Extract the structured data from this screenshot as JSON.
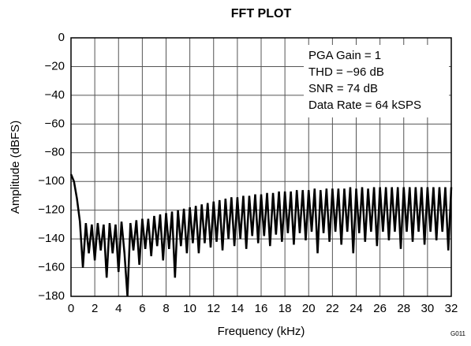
{
  "chart_data": {
    "type": "line",
    "title": "FFT PLOT",
    "x_label": "Frequency (kHz)",
    "y_label": "Amplitude (dBFS)",
    "figure_id": "G011",
    "annotations": [
      "PGA Gain = 1",
      "THD = −96 dB",
      "SNR = 74 dB",
      "Data Rate = 64 kSPS"
    ],
    "grid": true,
    "xlim": [
      0,
      32
    ],
    "xticks": [
      0,
      2,
      4,
      6,
      8,
      10,
      12,
      14,
      16,
      18,
      20,
      22,
      24,
      26,
      28,
      30,
      32
    ],
    "ylim": [
      -180,
      0
    ],
    "yticks": [
      {
        "value": -180,
        "label": "−180"
      },
      {
        "value": -160,
        "label": "−160"
      },
      {
        "value": -140,
        "label": "−140"
      },
      {
        "value": -120,
        "label": "−120"
      },
      {
        "value": -100,
        "label": "−100"
      },
      {
        "value": -80,
        "label": "−80"
      },
      {
        "value": -60,
        "label": "−60"
      },
      {
        "value": -40,
        "label": "−40"
      },
      {
        "value": -20,
        "label": "−20"
      },
      0
    ],
    "x": [
      0,
      0.25,
      0.5,
      0.75,
      1,
      1.25,
      1.5,
      1.75,
      2,
      2.25,
      2.5,
      2.75,
      3,
      3.25,
      3.5,
      3.75,
      4,
      4.25,
      4.5,
      4.75,
      5,
      5.25,
      5.5,
      5.75,
      6,
      6.25,
      6.5,
      6.75,
      7,
      7.25,
      7.5,
      7.75,
      8,
      8.25,
      8.5,
      8.75,
      9,
      9.25,
      9.5,
      9.75,
      10,
      10.25,
      10.5,
      10.75,
      11,
      11.25,
      11.5,
      11.75,
      12,
      12.25,
      12.5,
      12.75,
      13,
      13.25,
      13.5,
      13.75,
      14,
      14.25,
      14.5,
      14.75,
      15,
      15.25,
      15.5,
      15.75,
      16,
      16.25,
      16.5,
      16.75,
      17,
      17.25,
      17.5,
      17.75,
      18,
      18.25,
      18.5,
      18.75,
      19,
      19.25,
      19.5,
      19.75,
      20,
      20.25,
      20.5,
      20.75,
      21,
      21.25,
      21.5,
      21.75,
      22,
      22.25,
      22.5,
      22.75,
      23,
      23.25,
      23.5,
      23.75,
      24,
      24.25,
      24.5,
      24.75,
      25,
      25.25,
      25.5,
      25.75,
      26,
      26.25,
      26.5,
      26.75,
      27,
      27.25,
      27.5,
      27.75,
      28,
      28.25,
      28.5,
      28.75,
      29,
      29.25,
      29.5,
      29.75,
      30,
      30.25,
      30.5,
      30.75,
      31,
      31.25,
      31.5,
      31.75,
      32
    ],
    "series": [
      {
        "name": "Amplitude",
        "color": "#000000",
        "values": [
          -95,
          -100,
          -112,
          -128,
          -160,
          -129,
          -150,
          -130,
          -155,
          -129,
          -148,
          -130,
          -167,
          -129,
          -150,
          -130,
          -163,
          -128,
          -150,
          -180,
          -129,
          -148,
          -127,
          -158,
          -126,
          -147,
          -126,
          -152,
          -124,
          -145,
          -123,
          -155,
          -122,
          -147,
          -121,
          -167,
          -120,
          -145,
          -119,
          -150,
          -118,
          -143,
          -117,
          -150,
          -116,
          -143,
          -115,
          -146,
          -114,
          -142,
          -113,
          -148,
          -112,
          -140,
          -111,
          -145,
          -111,
          -140,
          -110,
          -147,
          -110,
          -138,
          -109,
          -143,
          -109,
          -138,
          -108,
          -145,
          -108,
          -137,
          -107,
          -142,
          -107,
          -136,
          -107,
          -144,
          -106,
          -136,
          -106,
          -141,
          -106,
          -135,
          -105,
          -150,
          -106,
          -136,
          -105,
          -142,
          -105,
          -135,
          -105,
          -144,
          -105,
          -135,
          -104,
          -150,
          -105,
          -136,
          -104,
          -142,
          -105,
          -135,
          -104,
          -145,
          -104,
          -135,
          -104,
          -141,
          -104,
          -135,
          -104,
          -147,
          -104,
          -135,
          -104,
          -142,
          -104,
          -135,
          -104,
          -144,
          -104,
          -135,
          -104,
          -141,
          -104,
          -135,
          -104,
          -148,
          -104
        ]
      }
    ]
  }
}
